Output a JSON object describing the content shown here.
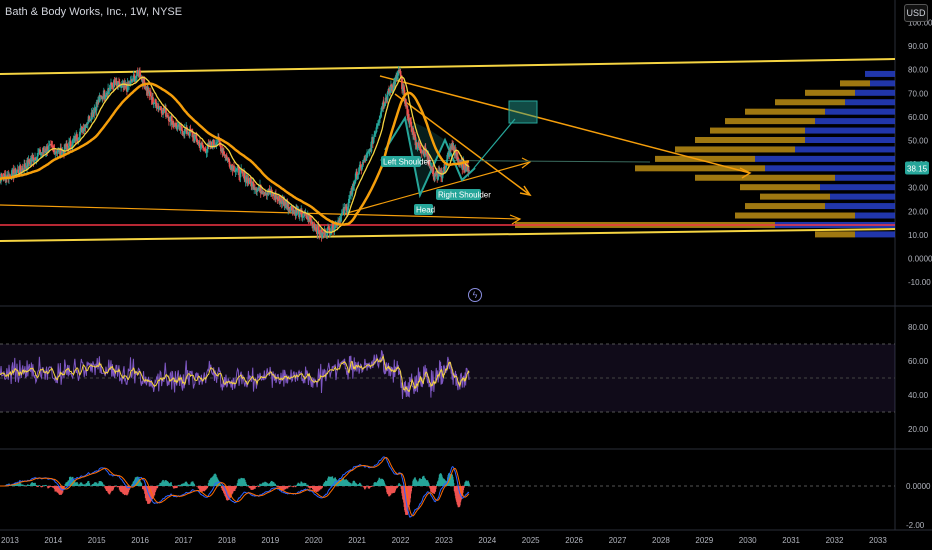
{
  "header": {
    "symbol_title": "Bath & Body Works, Inc., 1W, NYSE",
    "currency_button": "USD",
    "alert_icon": "lightning-icon"
  },
  "colors": {
    "background": "#000000",
    "price_up": "#26a69a",
    "price_down": "#ef5350",
    "ma_short": "#f5d442",
    "ma_long": "#f59e0b",
    "channel": "#f5d442",
    "support": "#f23645",
    "rsi": "#7e57c2",
    "rsi_signal": "#f5d442",
    "macd": "#2962ff",
    "macd_signal": "#ff6d00",
    "profile_gold": "#d4a017",
    "profile_blue": "#2740c8",
    "last_price_badge": "#26a69a"
  },
  "annotations": {
    "left_shoulder": "Left Shoulder",
    "head": "Head",
    "right_shoulder": "Right Shoulder"
  },
  "chart_data": [
    {
      "type": "line",
      "panel": "price",
      "x_ticks": [
        "2013",
        "2014",
        "2015",
        "2016",
        "2017",
        "2018",
        "2019",
        "2020",
        "2021",
        "2022",
        "2023",
        "2024",
        "2025",
        "2026",
        "2027",
        "2028",
        "2029",
        "2030",
        "2031",
        "2032",
        "2033"
      ],
      "y_ticks": [
        "100.00",
        "90.00",
        "80.00",
        "70.00",
        "60.00",
        "50.00",
        "40.00",
        "30.00",
        "20.00",
        "10.00",
        "0.0000",
        "-10.00"
      ],
      "ylim": [
        -10,
        100
      ],
      "last_price": "38.15",
      "series": [
        {
          "x": [
            2012.7,
            2013.0,
            2013.3,
            2013.6,
            2013.9,
            2014.2,
            2014.5,
            2014.8,
            2015.1,
            2015.4,
            2015.7,
            2016.0,
            2016.3,
            2016.6,
            2016.9,
            2017.2,
            2017.5,
            2017.8,
            2018.1,
            2018.4,
            2018.7,
            2019.0,
            2019.3,
            2019.6,
            2019.9,
            2020.2,
            2020.5,
            2020.8,
            2021.0,
            2021.3,
            2021.6,
            2021.8,
            2022.0,
            2022.2,
            2022.4,
            2022.6,
            2022.8,
            2023.0,
            2023.2,
            2023.4,
            2023.6
          ],
          "y": [
            34,
            35,
            38,
            43,
            47,
            45,
            50,
            58,
            68,
            74,
            72,
            79,
            67,
            62,
            55,
            53,
            46,
            50,
            40,
            35,
            30,
            28,
            24,
            20,
            17,
            10,
            14,
            22,
            35,
            45,
            65,
            72,
            79,
            60,
            48,
            45,
            35,
            36,
            48,
            40,
            38
          ]
        }
      ]
    },
    {
      "type": "line",
      "panel": "rsi",
      "y_ticks": [
        "80.00",
        "60.00",
        "40.00",
        "20.00"
      ],
      "ylim": [
        15,
        85
      ]
    },
    {
      "type": "bar",
      "panel": "macd",
      "y_ticks": [
        "0.0000",
        "-2.00"
      ],
      "ylim": [
        -2.5,
        2.5
      ]
    }
  ]
}
